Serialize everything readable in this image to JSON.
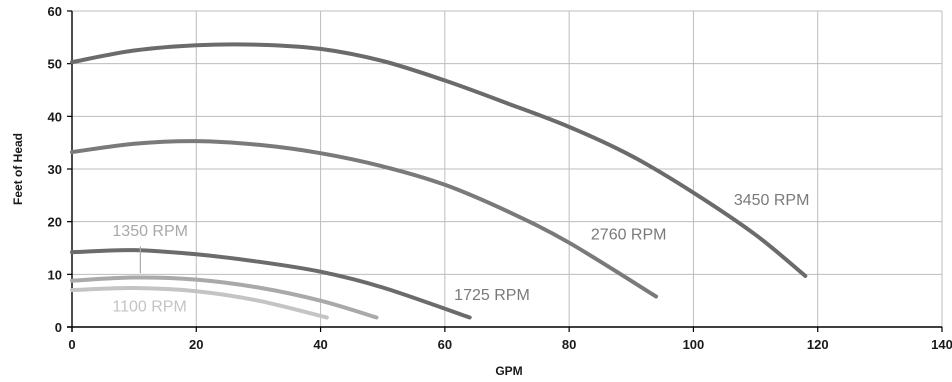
{
  "chart_data": {
    "type": "line",
    "title": "",
    "xlabel": "GPM",
    "ylabel": "Feet of Head",
    "xlim": [
      0,
      140
    ],
    "ylim": [
      0,
      60
    ],
    "xticks": [
      0,
      20,
      40,
      60,
      80,
      100,
      120,
      140
    ],
    "yticks": [
      0,
      10,
      20,
      30,
      40,
      50,
      60
    ],
    "grid": true,
    "legend": "none",
    "series": [
      {
        "name": "3450 RPM",
        "color": "#6b6b6b",
        "x": [
          0,
          10,
          20,
          30,
          40,
          50,
          60,
          70,
          80,
          90,
          100,
          110,
          118
        ],
        "y": [
          50.3,
          52.5,
          53.5,
          53.6,
          52.8,
          50.5,
          46.8,
          42.5,
          38.0,
          32.5,
          25.5,
          17.5,
          9.7
        ]
      },
      {
        "name": "2760 RPM",
        "color": "#7a7a7a",
        "x": [
          0,
          10,
          20,
          30,
          40,
          50,
          60,
          70,
          80,
          94
        ],
        "y": [
          33.2,
          34.8,
          35.3,
          34.6,
          33.0,
          30.5,
          27.0,
          22.0,
          16.0,
          5.8
        ]
      },
      {
        "name": "1725 RPM",
        "color": "#6b6b6b",
        "x": [
          0,
          10,
          20,
          30,
          40,
          50,
          64
        ],
        "y": [
          14.2,
          14.6,
          13.8,
          12.4,
          10.5,
          7.5,
          1.8
        ]
      },
      {
        "name": "1350 RPM",
        "color": "#a9a9a9",
        "x": [
          0,
          10,
          20,
          30,
          40,
          49
        ],
        "y": [
          8.8,
          9.4,
          9.0,
          7.5,
          5.0,
          1.8
        ]
      },
      {
        "name": "1100 RPM",
        "color": "#c4c4c4",
        "x": [
          0,
          10,
          20,
          30,
          41
        ],
        "y": [
          7.0,
          7.4,
          6.8,
          5.0,
          1.8
        ]
      }
    ],
    "annotations": [
      {
        "series": "3450 RPM",
        "text": "3450 RPM",
        "x": 106.5,
        "y": 23.2,
        "color": "#7a7a7a"
      },
      {
        "series": "2760 RPM",
        "text": "2760 RPM",
        "x": 83.5,
        "y": 16.6,
        "color": "#7a7a7a"
      },
      {
        "series": "1725 RPM",
        "text": "1725 RPM",
        "x": 61.5,
        "y": 5.1,
        "color": "#7a7a7a"
      },
      {
        "series": "1350 RPM",
        "text": "1350 RPM",
        "x": 6.5,
        "y": 17.3,
        "color": "#a9a9a9"
      },
      {
        "series": "1100 RPM",
        "text": "1100 RPM",
        "x": 6.5,
        "y": 2.9,
        "color": "#c4c4c4"
      }
    ]
  }
}
